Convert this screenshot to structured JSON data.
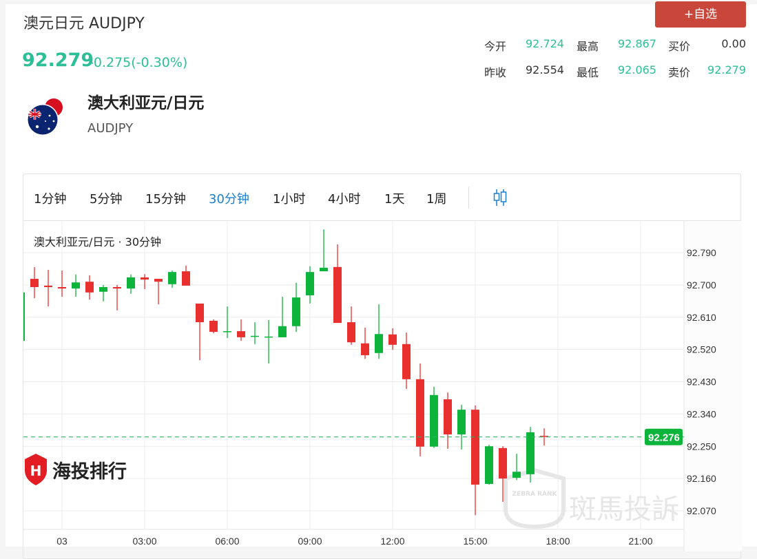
{
  "header": {
    "title": "澳元日元 AUDJPY",
    "price": "92.279",
    "change": "-0.275(-0.30%)",
    "fav_button": "+自选"
  },
  "stats": [
    {
      "label": "今开",
      "value": "92.724",
      "green": true
    },
    {
      "label": "最高",
      "value": "92.867",
      "green": true
    },
    {
      "label": "买价",
      "value": "0.00",
      "green": false
    },
    {
      "label": "昨收",
      "value": "92.554",
      "green": false
    },
    {
      "label": "最低",
      "value": "92.065",
      "green": true
    },
    {
      "label": "卖价",
      "value": "92.279",
      "green": true
    }
  ],
  "instrument": {
    "name": "澳大利亚元/日元",
    "code": "AUDJPY",
    "flag_icon": "australia-japan-flag"
  },
  "toolbar": {
    "intervals": [
      "1分钟",
      "5分钟",
      "15分钟",
      "30分钟",
      "1小时",
      "4小时",
      "1天",
      "1周"
    ],
    "active": "30分钟",
    "chart_type_icon": "candlestick-icon"
  },
  "colors": {
    "up": "#0cb43c",
    "down": "#e8312f",
    "accent": "#1a7fd0",
    "price_green": "#2cbf97",
    "fav": "#c9463a"
  },
  "watermarks": {
    "left": "海投排行",
    "right": "斑馬投訴",
    "right_badge": "ZEBRA RANK"
  },
  "chart_data": {
    "type": "candlestick",
    "title": "澳大利亚元/日元 · 30分钟",
    "y_ticks": [
      "92.790",
      "92.700",
      "92.610",
      "92.520",
      "92.430",
      "92.340",
      "92.250",
      "92.160",
      "92.070"
    ],
    "ylim": [
      92.03,
      92.93
    ],
    "x_ticks": [
      {
        "label": "03",
        "index": 3
      },
      {
        "label": "03:00",
        "index": 9
      },
      {
        "label": "06:00",
        "index": 15
      },
      {
        "label": "09:00",
        "index": 21
      },
      {
        "label": "12:00",
        "index": 27
      },
      {
        "label": "15:00",
        "index": 33
      },
      {
        "label": "18:00",
        "index": 39
      },
      {
        "label": "21:00",
        "index": 45
      }
    ],
    "current_price": "92.276",
    "grid": true,
    "ohlc": [
      [
        92.544,
        92.679,
        92.544,
        92.679
      ],
      [
        92.717,
        92.75,
        92.663,
        92.694
      ],
      [
        92.698,
        92.742,
        92.64,
        92.694
      ],
      [
        92.694,
        92.74,
        92.667,
        92.69
      ],
      [
        92.69,
        92.729,
        92.667,
        92.707
      ],
      [
        92.709,
        92.727,
        92.659,
        92.679
      ],
      [
        92.681,
        92.7,
        92.654,
        92.694
      ],
      [
        92.694,
        92.7,
        92.629,
        92.69
      ],
      [
        92.69,
        92.729,
        92.675,
        92.721
      ],
      [
        92.721,
        92.73,
        92.688,
        92.715
      ],
      [
        92.717,
        92.717,
        92.646,
        92.709
      ],
      [
        92.702,
        92.74,
        92.692,
        92.736
      ],
      [
        92.738,
        92.754,
        92.698,
        92.698
      ],
      [
        92.648,
        92.648,
        92.49,
        92.596
      ],
      [
        92.6,
        92.604,
        92.565,
        92.569
      ],
      [
        92.569,
        92.64,
        92.552,
        92.571
      ],
      [
        92.571,
        92.604,
        92.544,
        92.554
      ],
      [
        92.556,
        92.596,
        92.535,
        92.558
      ],
      [
        92.554,
        92.602,
        92.481,
        92.556
      ],
      [
        92.554,
        92.667,
        92.554,
        92.585
      ],
      [
        92.585,
        92.706,
        92.569,
        92.665
      ],
      [
        92.671,
        92.752,
        92.648,
        92.736
      ],
      [
        92.738,
        92.855,
        92.738,
        92.748
      ],
      [
        92.75,
        92.813,
        92.594,
        92.594
      ],
      [
        92.596,
        92.64,
        92.533,
        92.54
      ],
      [
        92.537,
        92.581,
        92.494,
        92.504
      ],
      [
        92.51,
        92.646,
        92.494,
        92.563
      ],
      [
        92.562,
        92.579,
        92.519,
        92.533
      ],
      [
        92.535,
        92.567,
        92.41,
        92.437
      ],
      [
        92.437,
        92.481,
        92.222,
        92.249
      ],
      [
        92.249,
        92.416,
        92.245,
        92.393
      ],
      [
        92.381,
        92.4,
        92.243,
        92.283
      ],
      [
        92.283,
        92.366,
        92.241,
        92.352
      ],
      [
        92.352,
        92.364,
        92.058,
        92.143
      ],
      [
        92.145,
        92.254,
        92.143,
        92.25
      ],
      [
        92.245,
        92.25,
        92.095,
        92.16
      ],
      [
        92.162,
        92.229,
        92.156,
        92.179
      ],
      [
        92.172,
        92.304,
        92.149,
        92.289
      ],
      [
        92.279,
        92.3,
        92.252,
        92.277
      ]
    ]
  }
}
